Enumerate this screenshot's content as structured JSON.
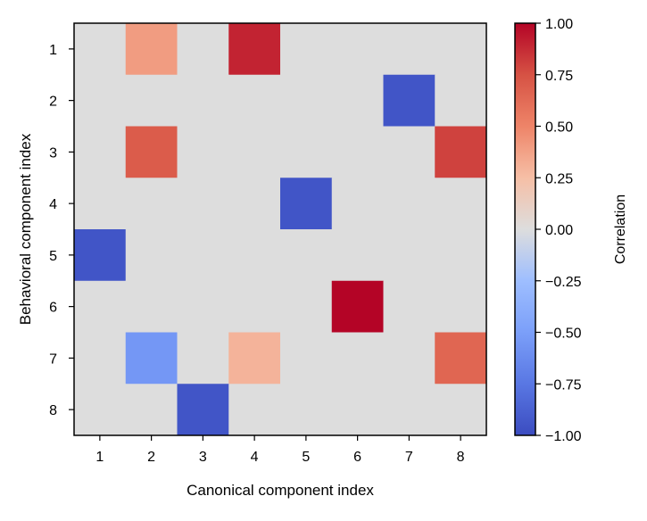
{
  "chart_data": {
    "type": "heatmap",
    "title": "",
    "xlabel": "Canonical component index",
    "ylabel": "Behavioral component index",
    "x_categories": [
      "1",
      "2",
      "3",
      "4",
      "5",
      "6",
      "7",
      "8"
    ],
    "y_categories": [
      "1",
      "2",
      "3",
      "4",
      "5",
      "6",
      "7",
      "8"
    ],
    "values": [
      [
        0,
        0.4,
        0,
        0.9,
        0,
        0,
        0,
        0
      ],
      [
        0,
        0,
        0,
        0,
        0,
        0,
        -0.95,
        0
      ],
      [
        0,
        0.7,
        0,
        0,
        0,
        0,
        0,
        0.8
      ],
      [
        0,
        0,
        0,
        0,
        -0.95,
        0,
        0,
        0
      ],
      [
        -0.95,
        0,
        0,
        0,
        0,
        0,
        0,
        0
      ],
      [
        0,
        0,
        0,
        0,
        0,
        1.0,
        0,
        0
      ],
      [
        0,
        -0.55,
        0,
        0.3,
        0,
        0,
        0,
        0.65
      ],
      [
        0,
        0,
        -0.95,
        0,
        0,
        0,
        0,
        0
      ]
    ],
    "colormap": "coolwarm",
    "vmin": -1.0,
    "vmax": 1.0,
    "colorbar": {
      "label": "Correlation",
      "ticks": [
        "1.00",
        "0.75",
        "0.50",
        "0.25",
        "0.00",
        "−0.25",
        "−0.50",
        "−0.75",
        "−1.00"
      ],
      "tick_values": [
        1.0,
        0.75,
        0.5,
        0.25,
        0.0,
        -0.25,
        -0.5,
        -0.75,
        -1.0
      ]
    },
    "grid": false
  }
}
